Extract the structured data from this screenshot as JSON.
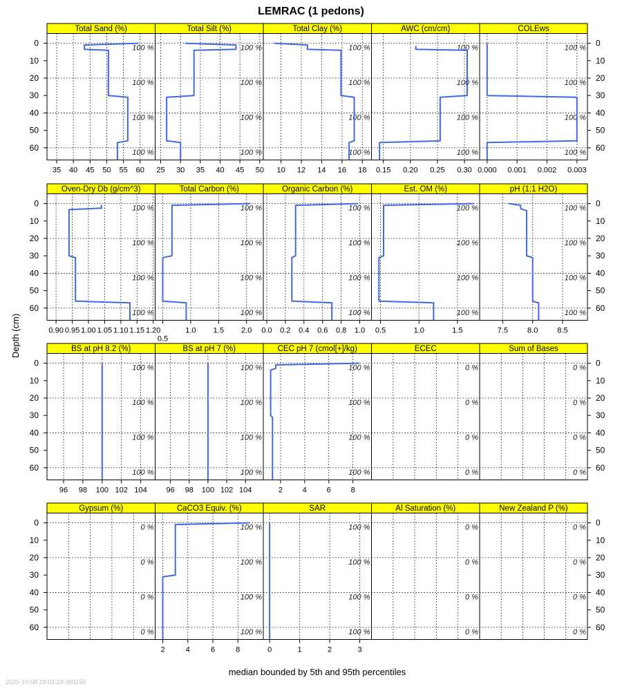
{
  "chart_data": {
    "type": "line",
    "title": "LEMRAC (1 pedons)",
    "xlabel": "median bounded by 5th and 95th percentiles",
    "ylabel": "Depth (cm)",
    "footer": "2025-10-08 18:01:19.069156",
    "line_color": "#4169e1",
    "strip_color": "#ffff00",
    "ylim": [
      -5.6,
      67
    ],
    "yticks": [
      0,
      10,
      20,
      30,
      40,
      50,
      60
    ],
    "ygrid": [
      0,
      20,
      40,
      60
    ],
    "percent_depths": [
      0,
      20,
      40,
      60
    ],
    "panels": [
      {
        "title": "Total Sand (%)",
        "xlim": [
          32.1,
          64.5
        ],
        "xticks": [
          "35",
          "40",
          "45",
          "50",
          "55",
          "60"
        ],
        "percent": "100 %",
        "profile": [
          [
            0,
            59.5
          ],
          [
            1,
            43.3
          ],
          [
            3.5,
            43.3
          ],
          [
            4,
            50.5
          ],
          [
            30,
            50.5
          ],
          [
            31,
            56.3
          ],
          [
            56,
            56.3
          ],
          [
            57,
            53.2
          ],
          [
            67,
            53.2
          ]
        ]
      },
      {
        "title": "Total Silt (%)",
        "xlim": [
          23.6,
          50.9
        ],
        "xticks": [
          "25",
          "30",
          "35",
          "40",
          "45",
          "50"
        ],
        "percent": "100 %",
        "profile": [
          [
            0,
            31.1
          ],
          [
            1,
            44.0
          ],
          [
            3.5,
            44.0
          ],
          [
            4,
            33.4
          ],
          [
            30,
            33.4
          ],
          [
            31,
            26.5
          ],
          [
            56,
            26.5
          ],
          [
            57,
            30.0
          ],
          [
            67,
            30.0
          ]
        ]
      },
      {
        "title": "Total Clay (%)",
        "xlim": [
          8.26,
          18.9
        ],
        "xticks": [
          "10",
          "12",
          "14",
          "16",
          "18"
        ],
        "percent": "100 %",
        "profile": [
          [
            0,
            9.3
          ],
          [
            1,
            12.6
          ],
          [
            3.5,
            12.6
          ],
          [
            4,
            15.9
          ],
          [
            30,
            15.9
          ],
          [
            31,
            17.2
          ],
          [
            56,
            17.2
          ],
          [
            57,
            16.7
          ],
          [
            67,
            16.7
          ]
        ]
      },
      {
        "title": "AWC (cm/cm)",
        "xlim": [
          0.128,
          0.328
        ],
        "xticks": [
          "0.15",
          "0.20",
          "0.25",
          "0.30"
        ],
        "percent": "100 %",
        "profile": [
          [
            1.5,
            0.21
          ],
          [
            3.5,
            0.21
          ],
          [
            4,
            0.305
          ],
          [
            30,
            0.305
          ],
          [
            31,
            0.255
          ],
          [
            56,
            0.255
          ],
          [
            57,
            0.143
          ],
          [
            67,
            0.143
          ]
        ]
      },
      {
        "title": "COLEws",
        "xlim": [
          -0.00025,
          0.00335
        ],
        "xticks": [
          "0.000",
          "0.001",
          "0.002",
          "0.003"
        ],
        "percent": "100 %",
        "profile": [
          [
            0,
            0
          ],
          [
            30,
            0
          ],
          [
            31,
            0.003
          ],
          [
            56,
            0.003
          ],
          [
            57,
            0
          ],
          [
            67,
            0
          ]
        ]
      },
      {
        "title": "Oven-Dry Db (g/cm^3)",
        "xlim": [
          0.872,
          1.206
        ],
        "xticks": [
          "0.90",
          "0.95",
          "1.00",
          "1.05",
          "1.10",
          "1.15",
          "1.20"
        ],
        "percent": "100 %",
        "profile": [
          [
            0.7,
            1.04
          ],
          [
            2.6,
            1.04
          ],
          [
            3.5,
            0.94
          ],
          [
            30,
            0.94
          ],
          [
            31,
            0.96
          ],
          [
            56,
            0.96
          ],
          [
            57,
            1.128
          ],
          [
            67,
            1.128
          ]
        ]
      },
      {
        "title": "Total Carbon (%)",
        "xlim": [
          0.364,
          2.3
        ],
        "xticks": [
          "0.5",
          "1.0",
          "1.5",
          "2.0"
        ],
        "percent": "100 %",
        "profile": [
          [
            0,
            2.07
          ],
          [
            1,
            0.665
          ],
          [
            30,
            0.665
          ],
          [
            31,
            0.5
          ],
          [
            56,
            0.5
          ],
          [
            57,
            0.92
          ],
          [
            67,
            0.92
          ]
        ]
      },
      {
        "title": "Organic Carbon (%)",
        "xlim": [
          -0.037,
          1.126
        ],
        "xticks": [
          "0.0",
          "0.2",
          "0.4",
          "0.6",
          "0.8",
          "1.0"
        ],
        "percent": "100 %",
        "profile": [
          [
            0,
            0.98
          ],
          [
            1,
            0.31
          ],
          [
            30,
            0.31
          ],
          [
            31,
            0.27
          ],
          [
            56,
            0.27
          ],
          [
            57,
            0.7
          ],
          [
            67,
            0.7
          ]
        ]
      },
      {
        "title": "Est. OM (%)",
        "xlim": [
          0.383,
          1.788
        ],
        "xticks": [
          "0.5",
          "1.0",
          "1.5"
        ],
        "percent": "100 %",
        "profile": [
          [
            0,
            1.71
          ],
          [
            1,
            0.54
          ],
          [
            30,
            0.54
          ],
          [
            31,
            0.48
          ],
          [
            56,
            0.48
          ],
          [
            57,
            1.19
          ],
          [
            67,
            1.19
          ]
        ]
      },
      {
        "title": "pH (1:1 H2O)",
        "xlim": [
          7.115,
          8.915
        ],
        "xticks": [
          "7.5",
          "8.0",
          "8.5"
        ],
        "percent": "100 %",
        "profile": [
          [
            0,
            7.6
          ],
          [
            1,
            7.8
          ],
          [
            3,
            7.8
          ],
          [
            4,
            7.9
          ],
          [
            30,
            7.9
          ],
          [
            31,
            8.0
          ],
          [
            56,
            8.0
          ],
          [
            57,
            8.1
          ],
          [
            67,
            8.1
          ]
        ]
      },
      {
        "title": "BS at pH 8.2 (%)",
        "xlim": [
          94.28,
          105.5
        ],
        "xticks": [
          "96",
          "98",
          "100",
          "102",
          "104"
        ],
        "percent": "100 %",
        "profile": [
          [
            0,
            100
          ],
          [
            67,
            100
          ]
        ]
      },
      {
        "title": "BS at pH 7 (%)",
        "xlim": [
          94.37,
          105.9
        ],
        "xticks": [
          "96",
          "98",
          "100",
          "102",
          "104"
        ],
        "percent": "100 %",
        "profile": [
          [
            0,
            100
          ],
          [
            67,
            100
          ]
        ]
      },
      {
        "title": "CEC pH 7 (cmol[+]/kg)",
        "xlim": [
          0.57,
          9.54
        ],
        "xticks": [
          "2",
          "4",
          "6",
          "8"
        ],
        "percent": "100 %",
        "profile": [
          [
            0,
            8.55
          ],
          [
            1,
            1.6
          ],
          [
            3,
            1.6
          ],
          [
            4,
            1.18
          ],
          [
            30,
            1.18
          ],
          [
            31,
            1.33
          ],
          [
            67,
            1.33
          ]
        ]
      },
      {
        "title": "ECEC",
        "xlim": [
          0,
          1
        ],
        "xticks": [],
        "percent": "0 %",
        "profile": []
      },
      {
        "title": "Sum of Bases",
        "xlim": [
          0,
          1
        ],
        "xticks": [],
        "percent": "0 %",
        "profile": []
      },
      {
        "title": "Gypsum (%)",
        "xlim": [
          0,
          1
        ],
        "xticks": [],
        "percent": "0 %",
        "profile": []
      },
      {
        "title": "CaCO3 Equiv. (%)",
        "xlim": [
          1.39,
          10.03
        ],
        "xticks": [
          "2",
          "4",
          "6",
          "8"
        ],
        "percent": "100 %",
        "profile": [
          [
            0,
            8.94
          ],
          [
            1,
            3.0
          ],
          [
            30,
            3.0
          ],
          [
            31,
            2.0
          ],
          [
            67,
            2.0
          ]
        ]
      },
      {
        "title": "SAR",
        "xlim": [
          -0.21,
          3.39
        ],
        "xticks": [
          "0",
          "1",
          "2",
          "3"
        ],
        "percent": "100 %",
        "profile": [
          [
            0,
            0
          ],
          [
            67,
            0
          ]
        ]
      },
      {
        "title": "Al Saturation (%)",
        "xlim": [
          0,
          1
        ],
        "xticks": [],
        "percent": "0 %",
        "profile": []
      },
      {
        "title": "New Zealand P (%)",
        "xlim": [
          0,
          1
        ],
        "xticks": [],
        "percent": "0 %",
        "profile": []
      }
    ]
  }
}
